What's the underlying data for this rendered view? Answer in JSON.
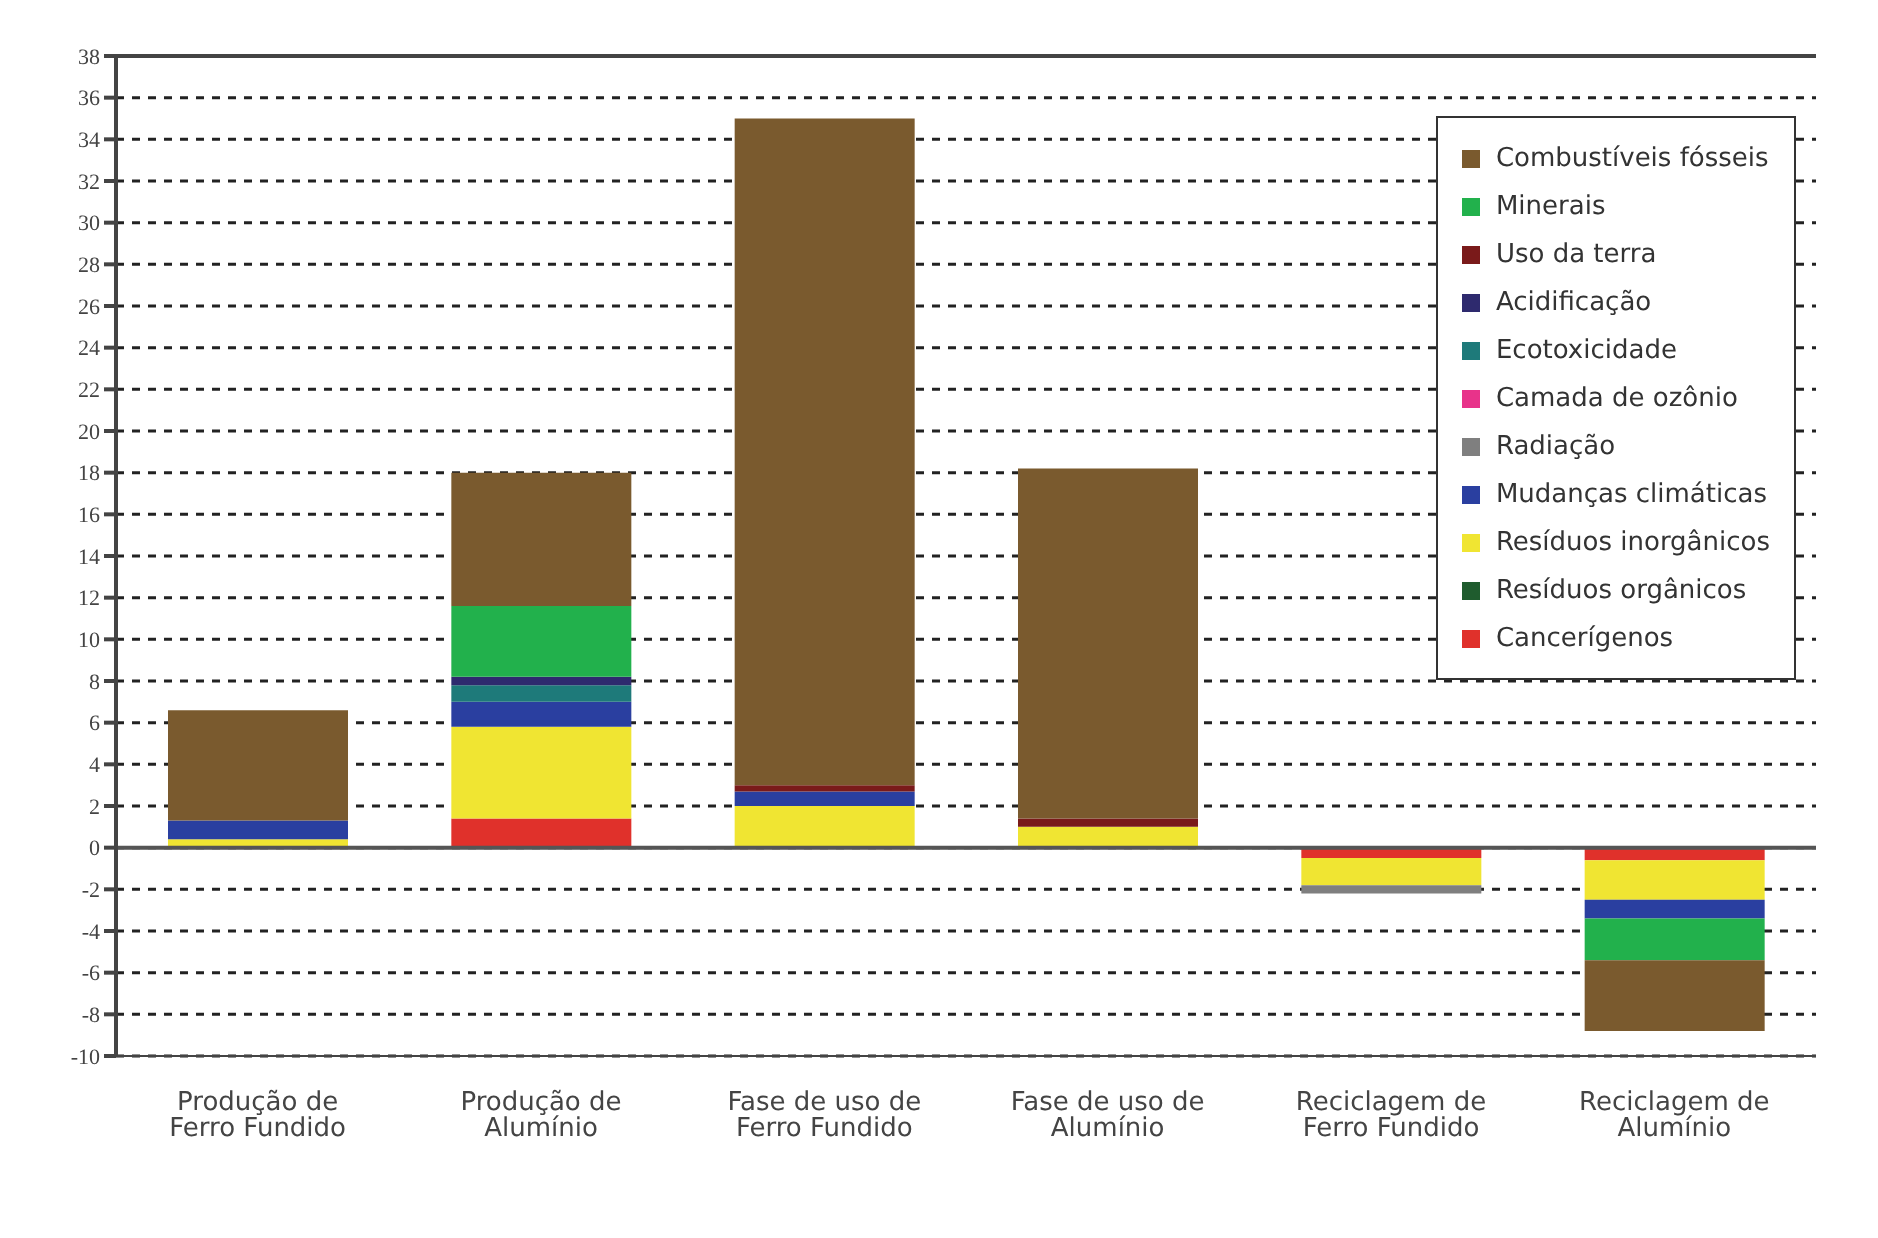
{
  "chart_data": {
    "type": "bar",
    "stacked": true,
    "categories": [
      "Produção de Ferro Fundido",
      "Produção de Alumínio",
      "Fase de uso de Ferro Fundido",
      "Fase de uso de Alumínio",
      "Reciclagem de Ferro Fundido",
      "Reciclagem de Alumínio"
    ],
    "series": [
      {
        "name": "Cancerígenos",
        "color": "#e0312b",
        "values": [
          null,
          1.4,
          null,
          null,
          -0.5,
          -0.6
        ]
      },
      {
        "name": "Resíduos orgânicos",
        "color": "#1f5c2e",
        "values": [
          null,
          null,
          null,
          null,
          null,
          null
        ]
      },
      {
        "name": "Resíduos inorgânicos",
        "color": "#f0e532",
        "values": [
          0.4,
          4.4,
          2.0,
          1.0,
          -1.3,
          -1.9
        ]
      },
      {
        "name": "Mudanças climáticas",
        "color": "#2a3fa0",
        "values": [
          0.9,
          1.2,
          0.7,
          null,
          null,
          -0.9
        ]
      },
      {
        "name": "Radiação",
        "color": "#7f7f7f",
        "values": [
          null,
          null,
          null,
          null,
          -0.4,
          null
        ]
      },
      {
        "name": "Camada de ozônio",
        "color": "#e8338a",
        "values": [
          null,
          null,
          null,
          null,
          null,
          null
        ]
      },
      {
        "name": "Ecotoxicidade",
        "color": "#1e7a7a",
        "values": [
          null,
          0.8,
          null,
          null,
          null,
          null
        ]
      },
      {
        "name": "Acidificação",
        "color": "#2e2a6e",
        "values": [
          null,
          0.4,
          null,
          null,
          null,
          null
        ]
      },
      {
        "name": "Uso da terra",
        "color": "#7a1a1a",
        "values": [
          null,
          null,
          0.3,
          0.4,
          null,
          null
        ]
      },
      {
        "name": "Minerais",
        "color": "#22b14c",
        "values": [
          null,
          3.4,
          null,
          null,
          null,
          -2.0
        ]
      },
      {
        "name": "Combustíveis fósseis",
        "color": "#7a5a2e",
        "values": [
          5.3,
          6.4,
          32.0,
          16.8,
          null,
          -3.4
        ]
      }
    ],
    "ylim": [
      -10,
      38
    ],
    "yticks": [
      -10,
      -8,
      -6,
      -4,
      -2,
      0,
      2,
      4,
      6,
      8,
      10,
      12,
      14,
      16,
      18,
      20,
      22,
      24,
      26,
      28,
      30,
      32,
      34,
      36,
      38
    ],
    "grid": "y",
    "legend": "top right",
    "ref_lines": [
      {
        "axis": "y",
        "value": 0,
        "color": "#555555"
      }
    ]
  }
}
